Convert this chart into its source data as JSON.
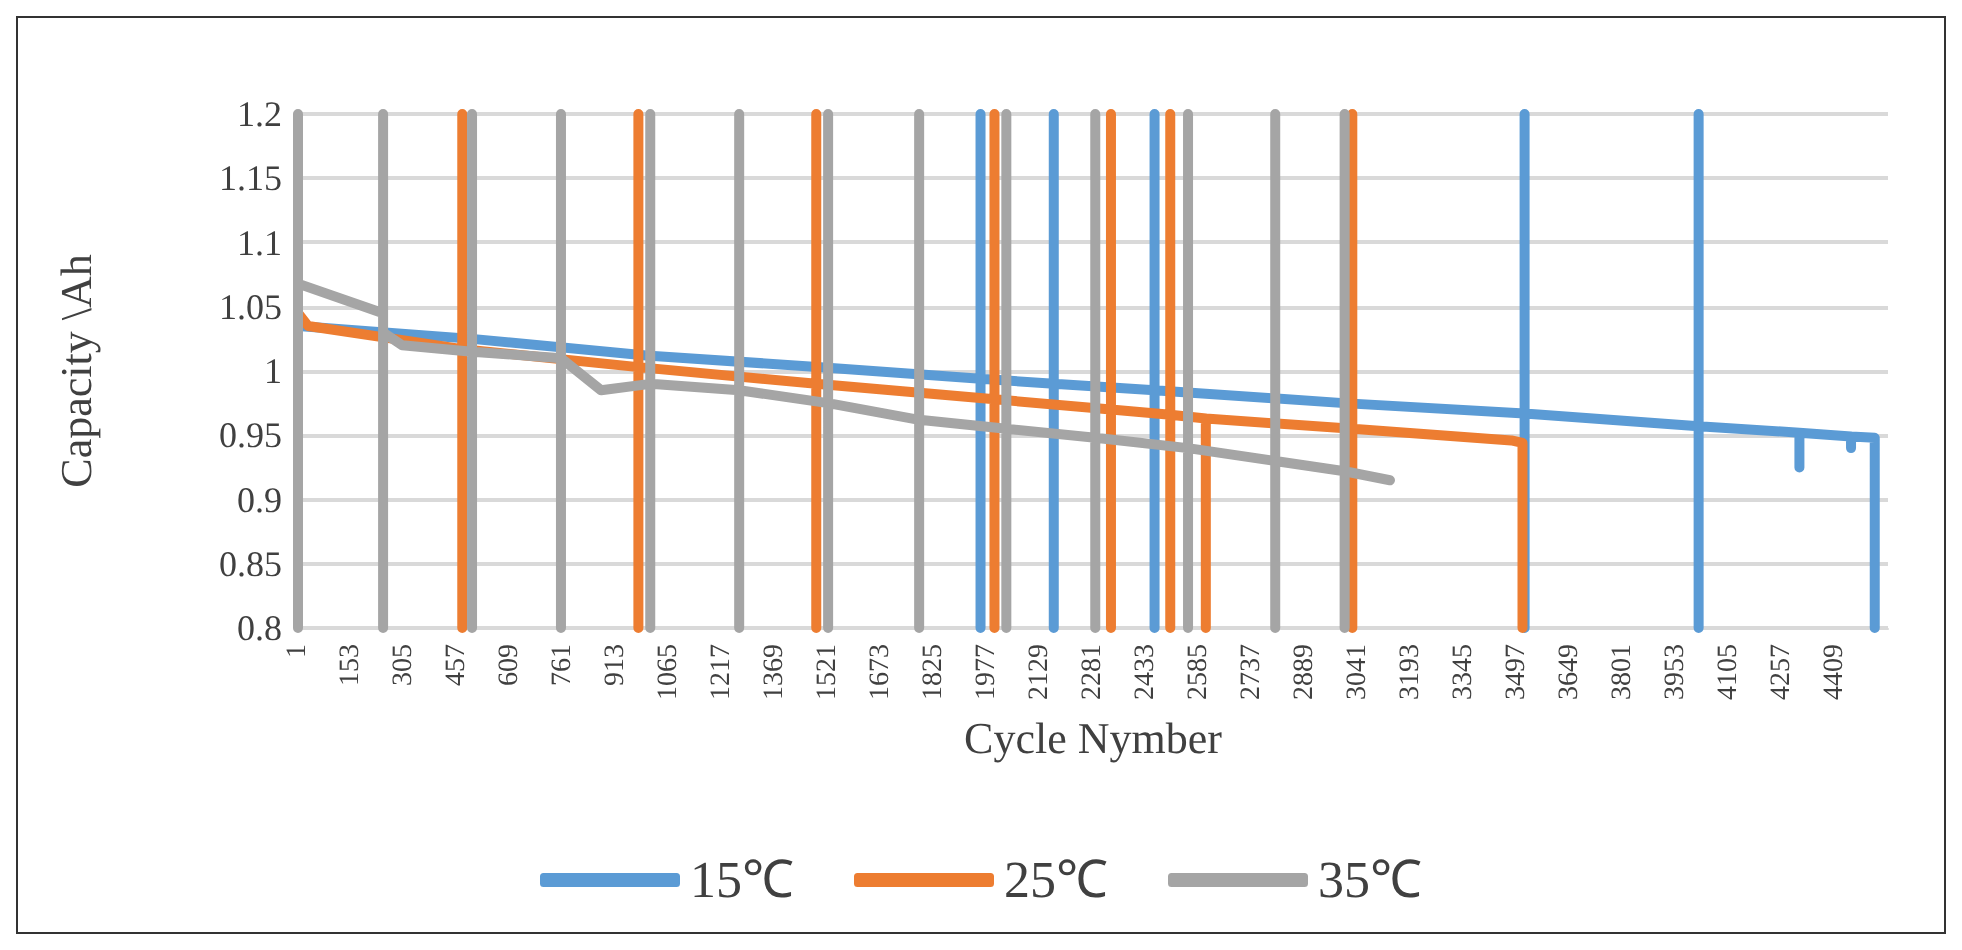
{
  "chart_data": {
    "type": "line",
    "xlabel": "Cycle Nymber",
    "ylabel": "Capacity \\Ah",
    "xlim": [
      1,
      4560
    ],
    "xticks": [
      1,
      153,
      305,
      457,
      609,
      761,
      913,
      1065,
      1217,
      1369,
      1521,
      1673,
      1825,
      1977,
      2129,
      2281,
      2433,
      2585,
      2737,
      2889,
      3041,
      3193,
      3345,
      3497,
      3649,
      3801,
      3953,
      4105,
      4257,
      4409
    ],
    "ylim": [
      0.8,
      1.2
    ],
    "yticks": [
      0.8,
      0.85,
      0.9,
      0.95,
      1,
      1.05,
      1.1,
      1.15,
      1.2
    ],
    "grid": "y",
    "legend": "bottom",
    "series": [
      {
        "name": "15℃",
        "color": "#5b9bd5",
        "x": [
          1,
          500,
          1000,
          1500,
          1958,
          1958,
          1958,
          1958,
          2168,
          2168,
          2168,
          2168,
          2457,
          2457,
          2457,
          2457,
          3000,
          3518,
          3518,
          3518,
          3518,
          4017,
          4017,
          4017,
          4017,
          4306,
          4306,
          4306,
          4454,
          4454,
          4454,
          4522,
          4522
        ],
        "values": [
          1.035,
          1.025,
          1.012,
          1.003,
          0.994,
          1.2,
          0.8,
          0.994,
          0.99,
          1.2,
          0.8,
          0.99,
          0.985,
          1.2,
          0.8,
          0.985,
          0.975,
          0.967,
          1.2,
          0.8,
          0.967,
          0.957,
          1.2,
          0.8,
          0.957,
          0.952,
          0.925,
          0.952,
          0.949,
          0.94,
          0.949,
          0.948,
          0.8
        ]
      },
      {
        "name": "25℃",
        "color": "#ed7d31",
        "x": [
          1,
          30,
          472,
          472,
          472,
          472,
          977,
          977,
          977,
          977,
          1487,
          1487,
          1487,
          1487,
          1998,
          1998,
          1998,
          1998,
          2332,
          2332,
          2332,
          2332,
          2502,
          2502,
          2502,
          2502,
          2604,
          2604,
          2604,
          3024,
          3024,
          3024,
          3024,
          3480,
          3512,
          3512
        ],
        "values": [
          1.045,
          1.035,
          1.017,
          1.2,
          0.8,
          1.017,
          1.003,
          1.2,
          0.8,
          1.003,
          0.99,
          1.2,
          0.8,
          0.99,
          0.978,
          1.2,
          0.8,
          0.978,
          0.97,
          1.2,
          0.8,
          0.97,
          0.966,
          1.2,
          0.8,
          0.966,
          0.963,
          0.8,
          0.963,
          0.955,
          1.2,
          0.8,
          0.955,
          0.946,
          0.944,
          0.8
        ]
      },
      {
        "name": "35℃",
        "color": "#a5a5a5",
        "x": [
          1,
          1,
          1,
          245,
          245,
          245,
          245,
          300,
          500,
          500,
          500,
          500,
          755,
          755,
          755,
          755,
          870,
          1011,
          1011,
          1011,
          1011,
          1266,
          1266,
          1266,
          1266,
          1521,
          1521,
          1521,
          1521,
          1782,
          1782,
          1782,
          1782,
          2032,
          2032,
          2032,
          2032,
          2287,
          2287,
          2287,
          2287,
          2553,
          2553,
          2553,
          2553,
          2803,
          2803,
          2803,
          2803,
          3002,
          3002,
          3002,
          3002,
          3132
        ],
        "values": [
          0.8,
          1.2,
          1.068,
          1.045,
          1.2,
          0.8,
          1.03,
          1.02,
          1.015,
          1.2,
          0.8,
          1.015,
          1.01,
          1.2,
          0.8,
          1.01,
          0.985,
          0.99,
          1.2,
          0.8,
          0.99,
          0.985,
          1.2,
          0.8,
          0.985,
          0.975,
          1.2,
          0.8,
          0.975,
          0.962,
          1.2,
          0.8,
          0.962,
          0.955,
          1.2,
          0.8,
          0.955,
          0.948,
          1.2,
          0.8,
          0.948,
          0.94,
          1.2,
          0.8,
          0.94,
          0.93,
          1.2,
          0.8,
          0.93,
          0.922,
          1.2,
          0.8,
          0.922,
          0.915
        ]
      }
    ]
  }
}
